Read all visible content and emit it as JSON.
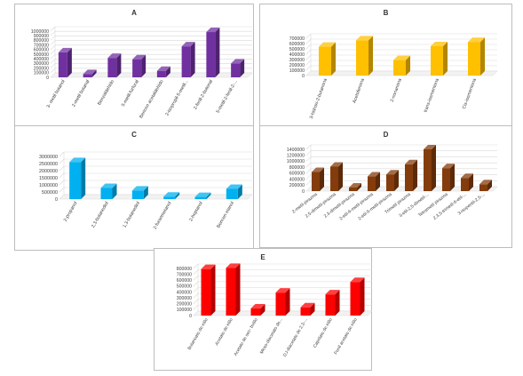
{
  "chart_data": [
    {
      "id": "a",
      "type": "bar",
      "title": "A",
      "color": "#7030a0",
      "ylim": [
        0,
        1000000
      ],
      "yticks": [
        0,
        100000,
        200000,
        300000,
        400000,
        500000,
        600000,
        700000,
        800000,
        900000,
        1000000
      ],
      "ytick_labels": [
        "0",
        "100000",
        "200000",
        "300000",
        "400000",
        "500000",
        "600000",
        "700000",
        "800000",
        "900000",
        "1000000"
      ],
      "categories": [
        "3- metil butanol",
        "2-metil butanal",
        "Benzaldehído",
        "5-metil-furfural",
        "Bencen acetaldehído",
        "2-isopropil-5-metil...",
        "2-fenil-2-butenal",
        "5-metil-2-fenil-2-..."
      ],
      "values": [
        540000,
        70000,
        420000,
        390000,
        140000,
        670000,
        980000,
        300000
      ]
    },
    {
      "id": "b",
      "type": "bar",
      "title": "B",
      "color": "#ffc000",
      "ylim": [
        0,
        700000
      ],
      "yticks": [
        0,
        100000,
        200000,
        300000,
        400000,
        500000,
        600000,
        700000
      ],
      "ytick_labels": [
        "0",
        "100000",
        "200000",
        "300000",
        "400000",
        "500000",
        "600000",
        "700000"
      ],
      "categories": [
        "3-hidroxi-2-butanona",
        "Acetofenona",
        "2-nonanona",
        "trans-isomentona",
        "Cis-isomentona"
      ],
      "values": [
        540000,
        660000,
        290000,
        550000,
        630000
      ]
    },
    {
      "id": "c",
      "type": "bar",
      "title": "C",
      "color": "#00b0f0",
      "ylim": [
        0,
        3000000
      ],
      "yticks": [
        0,
        500000,
        1000000,
        1500000,
        2000000,
        2500000,
        3000000
      ],
      "ytick_labels": [
        "0",
        "500000",
        "1000000",
        "1500000",
        "2000000",
        "2500000",
        "3000000"
      ],
      "categories": [
        "2-propanol",
        "2,3-butanediol",
        "1,3-butanediol",
        "2-furanmetanol",
        "2-heptanol",
        "Bencen etanol"
      ],
      "values": [
        2600000,
        780000,
        600000,
        170000,
        150000,
        720000
      ]
    },
    {
      "id": "d",
      "type": "bar",
      "title": "D",
      "color": "#843c0c",
      "ylim": [
        0,
        1400000
      ],
      "yticks": [
        0,
        200000,
        400000,
        600000,
        800000,
        1000000,
        1200000,
        1400000
      ],
      "ytick_labels": [
        "0",
        "200000",
        "400000",
        "600000",
        "800000",
        "1000000",
        "1200000",
        "1400000"
      ],
      "categories": [
        "2-metil-pirazina",
        "2,5-dimetil-pirazina",
        "2,3-dimetil-pirazina",
        "2-etil-6-metil-pirazina",
        "2-etil-5-metil-pirazina",
        "Trimetil pirazina",
        "3-etil-2,5-dimetil-...",
        "Tetrametil pirazina",
        "2,3,5-trimetil-6-etil-...",
        "3-isopentil-2,5-..."
      ],
      "values": [
        640000,
        820000,
        120000,
        490000,
        560000,
        900000,
        1400000,
        770000,
        440000,
        230000
      ]
    },
    {
      "id": "e",
      "type": "bar",
      "title": "E",
      "color": "#ff0000",
      "ylim": [
        0,
        800000
      ],
      "yticks": [
        0,
        100000,
        200000,
        300000,
        400000,
        500000,
        600000,
        700000,
        800000
      ],
      "ytick_labels": [
        "0",
        "100000",
        "200000",
        "300000",
        "400000",
        "500000",
        "600000",
        "700000",
        "800000"
      ],
      "categories": [
        "Butanoato de etilo",
        "Acetato de etilo",
        "Acetato de sec- butilo",
        "Meso-diacetato de...",
        "D,l-diacetato de 2,3-...",
        "Caprilato de etilo",
        "Fenil acetato de etilo"
      ],
      "values": [
        790000,
        810000,
        120000,
        390000,
        140000,
        360000,
        570000
      ]
    }
  ]
}
